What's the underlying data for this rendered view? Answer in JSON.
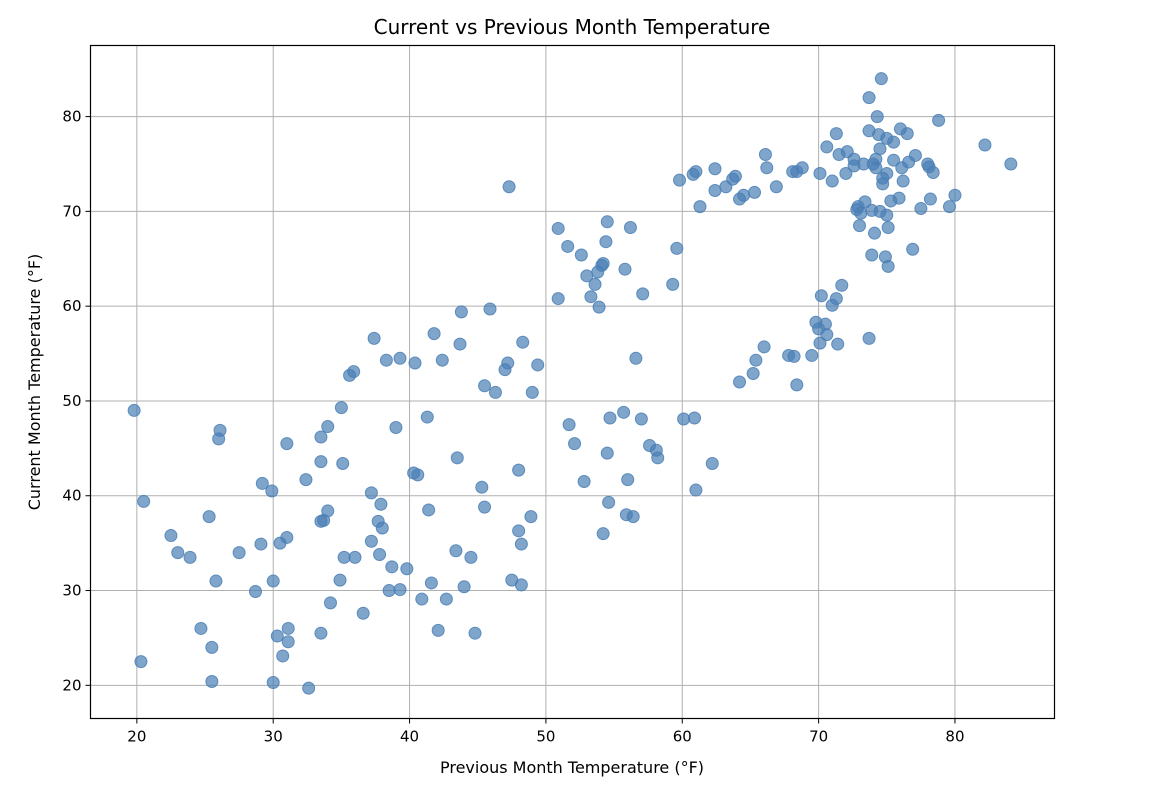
{
  "chart_data": {
    "type": "scatter",
    "title": "Current vs Previous Month Temperature",
    "xlabel": "Previous Month Temperature (°F)",
    "ylabel": "Current Month Temperature (°F)",
    "xlim": [
      16.6,
      87.3
    ],
    "ylim": [
      16.5,
      87.5
    ],
    "xticks": [
      20,
      30,
      40,
      50,
      60,
      70,
      80
    ],
    "yticks": [
      20,
      30,
      40,
      50,
      60,
      70,
      80
    ],
    "grid": true,
    "marker_color": "#4a7fb5",
    "series": [
      {
        "name": "points",
        "points": [
          [
            19.8,
            49.0
          ],
          [
            20.3,
            22.5
          ],
          [
            20.5,
            39.4
          ],
          [
            22.5,
            35.8
          ],
          [
            23.0,
            34.0
          ],
          [
            23.9,
            33.5
          ],
          [
            24.7,
            26.0
          ],
          [
            25.3,
            37.8
          ],
          [
            25.5,
            24.0
          ],
          [
            25.5,
            20.4
          ],
          [
            25.8,
            31.0
          ],
          [
            26.0,
            46.0
          ],
          [
            26.1,
            46.9
          ],
          [
            27.5,
            34.0
          ],
          [
            28.7,
            29.9
          ],
          [
            29.1,
            34.9
          ],
          [
            29.2,
            41.3
          ],
          [
            29.9,
            40.5
          ],
          [
            30.0,
            31.0
          ],
          [
            30.0,
            20.3
          ],
          [
            30.3,
            25.2
          ],
          [
            30.5,
            35.0
          ],
          [
            30.7,
            23.1
          ],
          [
            31.0,
            35.6
          ],
          [
            31.0,
            45.5
          ],
          [
            31.1,
            24.6
          ],
          [
            31.1,
            26.0
          ],
          [
            32.4,
            41.7
          ],
          [
            32.6,
            19.7
          ],
          [
            33.5,
            46.2
          ],
          [
            33.5,
            43.6
          ],
          [
            33.5,
            37.3
          ],
          [
            33.5,
            25.5
          ],
          [
            33.7,
            37.4
          ],
          [
            34.0,
            38.4
          ],
          [
            34.0,
            47.3
          ],
          [
            34.2,
            28.7
          ],
          [
            34.9,
            31.1
          ],
          [
            35.0,
            49.3
          ],
          [
            35.1,
            43.4
          ],
          [
            35.2,
            33.5
          ],
          [
            35.6,
            52.7
          ],
          [
            35.9,
            53.1
          ],
          [
            36.0,
            33.5
          ],
          [
            36.6,
            27.6
          ],
          [
            37.2,
            40.3
          ],
          [
            37.2,
            35.2
          ],
          [
            37.4,
            56.6
          ],
          [
            37.7,
            37.3
          ],
          [
            37.8,
            33.8
          ],
          [
            37.9,
            39.1
          ],
          [
            38.0,
            36.6
          ],
          [
            38.3,
            54.3
          ],
          [
            38.5,
            30.0
          ],
          [
            38.7,
            32.5
          ],
          [
            39.0,
            47.2
          ],
          [
            39.3,
            54.5
          ],
          [
            39.3,
            30.1
          ],
          [
            39.8,
            32.3
          ],
          [
            40.3,
            42.4
          ],
          [
            40.4,
            54.0
          ],
          [
            40.6,
            42.2
          ],
          [
            40.9,
            29.1
          ],
          [
            41.3,
            48.3
          ],
          [
            41.4,
            38.5
          ],
          [
            41.6,
            30.8
          ],
          [
            41.8,
            57.1
          ],
          [
            42.1,
            25.8
          ],
          [
            42.4,
            54.3
          ],
          [
            42.7,
            29.1
          ],
          [
            43.4,
            34.2
          ],
          [
            43.5,
            44.0
          ],
          [
            43.7,
            56.0
          ],
          [
            43.8,
            59.4
          ],
          [
            44.0,
            30.4
          ],
          [
            44.5,
            33.5
          ],
          [
            44.8,
            25.5
          ],
          [
            45.3,
            40.9
          ],
          [
            45.5,
            38.8
          ],
          [
            45.5,
            51.6
          ],
          [
            45.9,
            59.7
          ],
          [
            46.3,
            50.9
          ],
          [
            47.0,
            53.3
          ],
          [
            47.2,
            54.0
          ],
          [
            47.3,
            72.6
          ],
          [
            47.5,
            31.1
          ],
          [
            48.0,
            36.3
          ],
          [
            48.0,
            42.7
          ],
          [
            48.2,
            30.6
          ],
          [
            48.2,
            34.9
          ],
          [
            48.3,
            56.2
          ],
          [
            48.9,
            37.8
          ],
          [
            49.0,
            50.9
          ],
          [
            49.4,
            53.8
          ],
          [
            50.9,
            60.8
          ],
          [
            50.9,
            68.2
          ],
          [
            51.6,
            66.3
          ],
          [
            51.7,
            47.5
          ],
          [
            52.1,
            45.5
          ],
          [
            52.6,
            65.4
          ],
          [
            52.8,
            41.5
          ],
          [
            53.0,
            63.2
          ],
          [
            53.3,
            61.0
          ],
          [
            53.6,
            62.3
          ],
          [
            53.8,
            63.6
          ],
          [
            53.9,
            59.9
          ],
          [
            54.1,
            64.3
          ],
          [
            54.2,
            64.5
          ],
          [
            54.2,
            36.0
          ],
          [
            54.4,
            66.8
          ],
          [
            54.5,
            68.9
          ],
          [
            54.5,
            44.5
          ],
          [
            54.6,
            39.3
          ],
          [
            54.7,
            48.2
          ],
          [
            55.7,
            48.8
          ],
          [
            55.8,
            63.9
          ],
          [
            55.9,
            38.0
          ],
          [
            56.0,
            41.7
          ],
          [
            56.2,
            68.3
          ],
          [
            56.4,
            37.8
          ],
          [
            56.6,
            54.5
          ],
          [
            57.0,
            48.1
          ],
          [
            57.1,
            61.3
          ],
          [
            57.6,
            45.3
          ],
          [
            58.1,
            44.8
          ],
          [
            58.2,
            44.0
          ],
          [
            59.3,
            62.3
          ],
          [
            59.6,
            66.1
          ],
          [
            59.8,
            73.3
          ],
          [
            60.1,
            48.1
          ],
          [
            60.8,
            73.9
          ],
          [
            60.9,
            48.2
          ],
          [
            61.0,
            74.2
          ],
          [
            61.0,
            40.6
          ],
          [
            61.3,
            70.5
          ],
          [
            62.2,
            43.4
          ],
          [
            62.4,
            74.5
          ],
          [
            62.4,
            72.2
          ],
          [
            63.2,
            72.6
          ],
          [
            63.7,
            73.4
          ],
          [
            63.9,
            73.7
          ],
          [
            64.2,
            71.3
          ],
          [
            64.2,
            52.0
          ],
          [
            64.5,
            71.7
          ],
          [
            65.2,
            52.9
          ],
          [
            65.3,
            72.0
          ],
          [
            65.4,
            54.3
          ],
          [
            66.0,
            55.7
          ],
          [
            66.1,
            76.0
          ],
          [
            66.2,
            74.6
          ],
          [
            66.9,
            72.6
          ],
          [
            67.8,
            54.8
          ],
          [
            68.1,
            74.2
          ],
          [
            68.2,
            54.7
          ],
          [
            68.4,
            51.7
          ],
          [
            68.4,
            74.2
          ],
          [
            68.8,
            74.6
          ],
          [
            69.5,
            54.8
          ],
          [
            69.8,
            58.3
          ],
          [
            70.0,
            57.6
          ],
          [
            70.1,
            74.0
          ],
          [
            70.1,
            56.1
          ],
          [
            70.2,
            61.1
          ],
          [
            70.5,
            58.1
          ],
          [
            70.6,
            76.8
          ],
          [
            70.6,
            57.0
          ],
          [
            71.0,
            60.1
          ],
          [
            71.0,
            73.2
          ],
          [
            71.3,
            78.2
          ],
          [
            71.3,
            60.8
          ],
          [
            71.4,
            56.0
          ],
          [
            71.5,
            76.0
          ],
          [
            71.7,
            62.2
          ],
          [
            72.0,
            74.0
          ],
          [
            72.1,
            76.3
          ],
          [
            72.6,
            75.5
          ],
          [
            72.6,
            74.8
          ],
          [
            72.8,
            70.2
          ],
          [
            72.9,
            70.5
          ],
          [
            73.0,
            68.5
          ],
          [
            73.1,
            69.8
          ],
          [
            73.3,
            75.0
          ],
          [
            73.4,
            71.0
          ],
          [
            73.7,
            82.0
          ],
          [
            73.7,
            78.5
          ],
          [
            73.7,
            56.6
          ],
          [
            73.9,
            65.4
          ],
          [
            73.9,
            70.1
          ],
          [
            74.0,
            75.0
          ],
          [
            74.1,
            67.7
          ],
          [
            74.2,
            75.5
          ],
          [
            74.2,
            74.6
          ],
          [
            74.3,
            80.0
          ],
          [
            74.4,
            78.1
          ],
          [
            74.5,
            70.0
          ],
          [
            74.5,
            76.6
          ],
          [
            74.6,
            84.0
          ],
          [
            74.7,
            73.5
          ],
          [
            74.7,
            72.9
          ],
          [
            74.9,
            65.2
          ],
          [
            75.0,
            69.6
          ],
          [
            75.0,
            74.0
          ],
          [
            75.0,
            77.7
          ],
          [
            75.1,
            64.2
          ],
          [
            75.1,
            68.3
          ],
          [
            75.3,
            71.1
          ],
          [
            75.5,
            75.4
          ],
          [
            75.5,
            77.3
          ],
          [
            75.9,
            71.4
          ],
          [
            76.0,
            78.7
          ],
          [
            76.1,
            74.6
          ],
          [
            76.2,
            73.2
          ],
          [
            76.5,
            78.2
          ],
          [
            76.6,
            75.2
          ],
          [
            76.9,
            66.0
          ],
          [
            77.1,
            75.9
          ],
          [
            77.5,
            70.3
          ],
          [
            78.0,
            75.0
          ],
          [
            78.1,
            74.7
          ],
          [
            78.2,
            71.3
          ],
          [
            78.4,
            74.1
          ],
          [
            78.8,
            79.6
          ],
          [
            79.6,
            70.5
          ],
          [
            80.0,
            71.7
          ],
          [
            82.2,
            77.0
          ],
          [
            84.1,
            75.0
          ]
        ]
      }
    ]
  }
}
